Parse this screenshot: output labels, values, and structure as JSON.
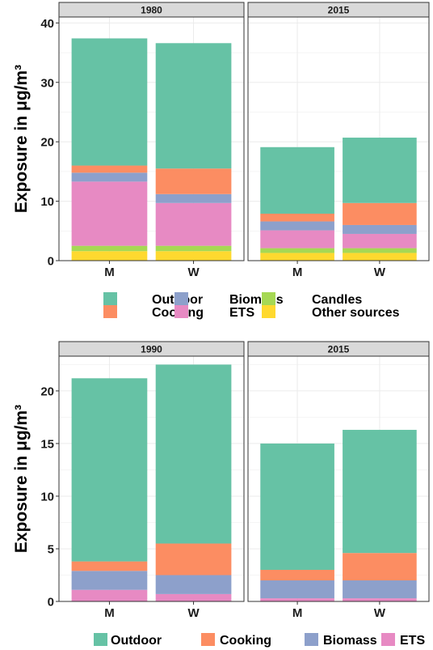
{
  "colors": {
    "Outdoor": "#66c2a5",
    "Cooking": "#fc8d62",
    "Biomass": "#8da0cb",
    "ETS": "#e78ac3",
    "Candles": "#a6d854",
    "Other sources": "#ffd92f",
    "grid": "#ebebeb",
    "panel_border": "#333333",
    "strip_fill": "#d9d9d9"
  },
  "chart_data": [
    {
      "type": "bar",
      "stacked": true,
      "ylabel": "Exposure in μg/m³",
      "ylim": [
        0,
        41
      ],
      "yticks": [
        0,
        10,
        20,
        30,
        40
      ],
      "grid": true,
      "legend": {
        "position": "bottom",
        "rows": [
          [
            "Outdoor",
            "Biomass",
            "Candles"
          ],
          [
            "Cooking",
            "ETS",
            "Other sources"
          ]
        ]
      },
      "series_order": [
        "Other sources",
        "Candles",
        "ETS",
        "Biomass",
        "Cooking",
        "Outdoor"
      ],
      "facets": [
        {
          "label": "1980",
          "categories": [
            "M",
            "W"
          ],
          "series": [
            {
              "name": "Other sources",
              "values": [
                1.6,
                1.6
              ]
            },
            {
              "name": "Candles",
              "values": [
                0.9,
                0.9
              ]
            },
            {
              "name": "ETS",
              "values": [
                10.8,
                7.2
              ]
            },
            {
              "name": "Biomass",
              "values": [
                1.5,
                1.5
              ]
            },
            {
              "name": "Cooking",
              "values": [
                1.2,
                4.3
              ]
            },
            {
              "name": "Outdoor",
              "values": [
                21.4,
                21.1
              ]
            }
          ]
        },
        {
          "label": "2015",
          "categories": [
            "M",
            "W"
          ],
          "series": [
            {
              "name": "Other sources",
              "values": [
                1.3,
                1.3
              ]
            },
            {
              "name": "Candles",
              "values": [
                0.8,
                0.8
              ]
            },
            {
              "name": "ETS",
              "values": [
                3.0,
                2.4
              ]
            },
            {
              "name": "Biomass",
              "values": [
                1.5,
                1.5
              ]
            },
            {
              "name": "Cooking",
              "values": [
                1.3,
                3.7
              ]
            },
            {
              "name": "Outdoor",
              "values": [
                11.2,
                11.0
              ]
            }
          ]
        }
      ]
    },
    {
      "type": "bar",
      "stacked": true,
      "ylabel": "Exposure in μg/m³",
      "ylim": [
        0,
        23.3
      ],
      "yticks": [
        0,
        5,
        10,
        15,
        20
      ],
      "grid": true,
      "legend": {
        "position": "bottom",
        "rows": [
          [
            "Outdoor",
            "Cooking",
            "Biomass",
            "ETS"
          ]
        ]
      },
      "series_order": [
        "ETS",
        "Biomass",
        "Cooking",
        "Outdoor"
      ],
      "facets": [
        {
          "label": "1990",
          "categories": [
            "M",
            "W"
          ],
          "series": [
            {
              "name": "ETS",
              "values": [
                1.1,
                0.7
              ]
            },
            {
              "name": "Biomass",
              "values": [
                1.8,
                1.8
              ]
            },
            {
              "name": "Cooking",
              "values": [
                0.9,
                3.0
              ]
            },
            {
              "name": "Outdoor",
              "values": [
                17.4,
                17.0
              ]
            }
          ]
        },
        {
          "label": "2015",
          "categories": [
            "M",
            "W"
          ],
          "series": [
            {
              "name": "ETS",
              "values": [
                0.3,
                0.3
              ]
            },
            {
              "name": "Biomass",
              "values": [
                1.7,
                1.7
              ]
            },
            {
              "name": "Cooking",
              "values": [
                1.0,
                2.6
              ]
            },
            {
              "name": "Outdoor",
              "values": [
                12.0,
                11.7
              ]
            }
          ]
        }
      ]
    }
  ]
}
